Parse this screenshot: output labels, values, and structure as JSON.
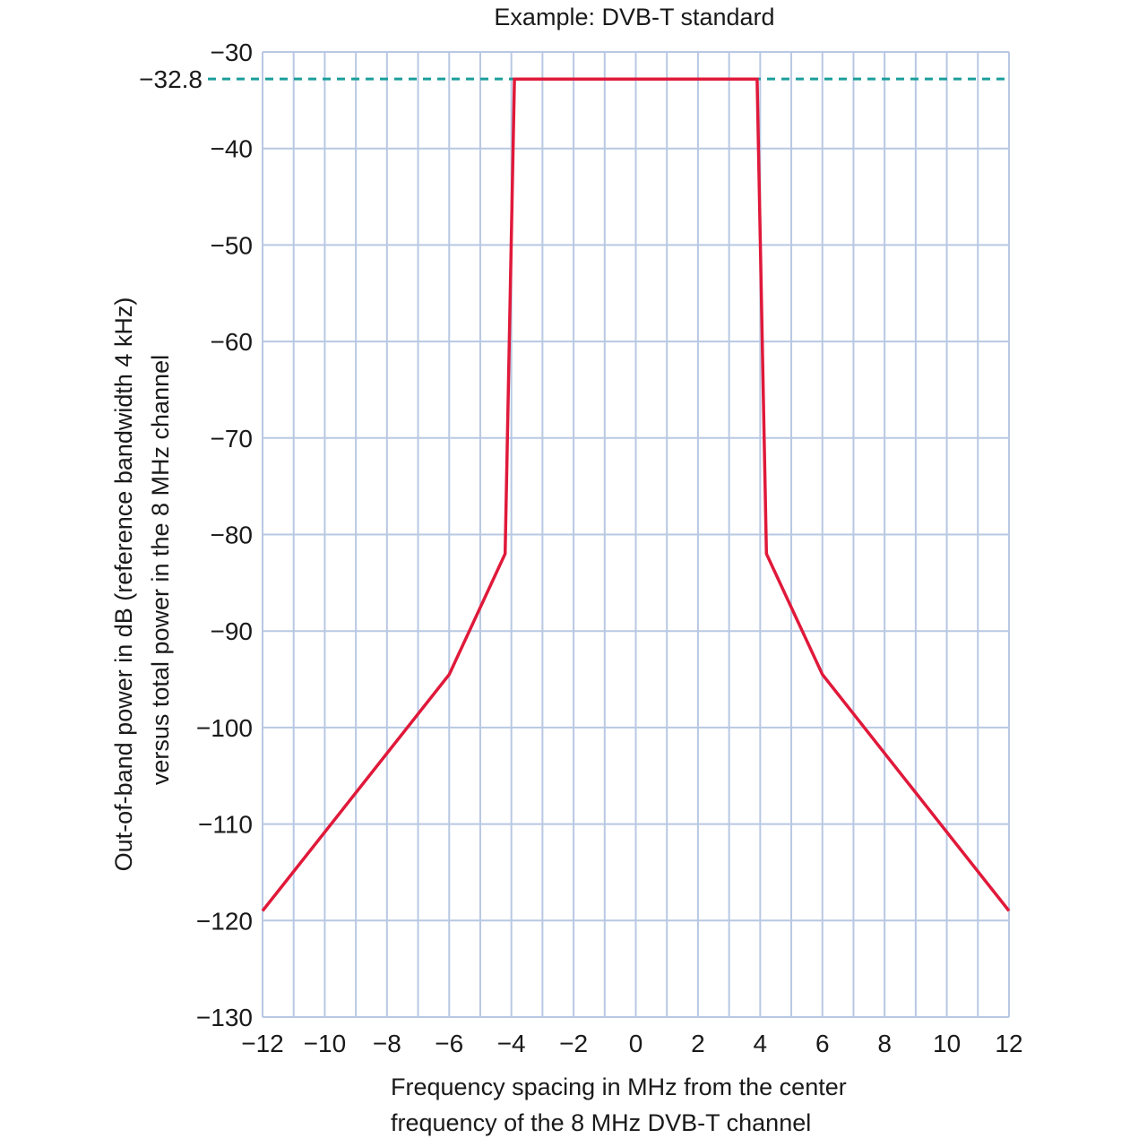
{
  "chart_data": {
    "type": "line",
    "title": "Example: DVB-T standard",
    "xlabel_lines": [
      "Frequency spacing in MHz from the center",
      "frequency of the 8 MHz DVB-T channel"
    ],
    "ylabel_lines": [
      "Out-of-band power in dB (reference bandwidth 4 kHz)",
      "versus total power in the 8 MHz channel"
    ],
    "xlim": [
      -12,
      12
    ],
    "ylim": [
      -130,
      -30
    ],
    "x_ticks": [
      -12,
      -10,
      -8,
      -6,
      -4,
      -2,
      0,
      2,
      4,
      6,
      8,
      10,
      12
    ],
    "x_tick_labels": [
      "−12",
      "−10",
      "−8",
      "−6",
      "−4",
      "−2",
      "0",
      "2",
      "4",
      "6",
      "8",
      "10",
      "12"
    ],
    "y_ticks": [
      -30,
      -40,
      -50,
      -60,
      -70,
      -80,
      -90,
      -100,
      -110,
      -120,
      -130
    ],
    "y_tick_labels": [
      "−30",
      "−40",
      "−50",
      "−60",
      "−70",
      "−80",
      "−90",
      "−100",
      "−110",
      "−120",
      "−130"
    ],
    "x_grid_step": 1,
    "y_grid_step": 10,
    "grid": true,
    "reference_line": {
      "y": -32.8,
      "label": "−32.8",
      "style": "dashed",
      "color": "#1a9e9b"
    },
    "series": [
      {
        "color": "#e0193a",
        "x": [
          -12,
          -6,
          -4.2,
          -3.9,
          -3.9,
          3.9,
          3.9,
          4.2,
          6,
          12
        ],
        "y": [
          -119,
          -94.5,
          -82,
          -32.8,
          -32.8,
          -32.8,
          -32.8,
          -82,
          -94.5,
          -119
        ]
      }
    ],
    "colors": {
      "grid": "#b8c8e3",
      "text": "#1a1a1a"
    }
  }
}
